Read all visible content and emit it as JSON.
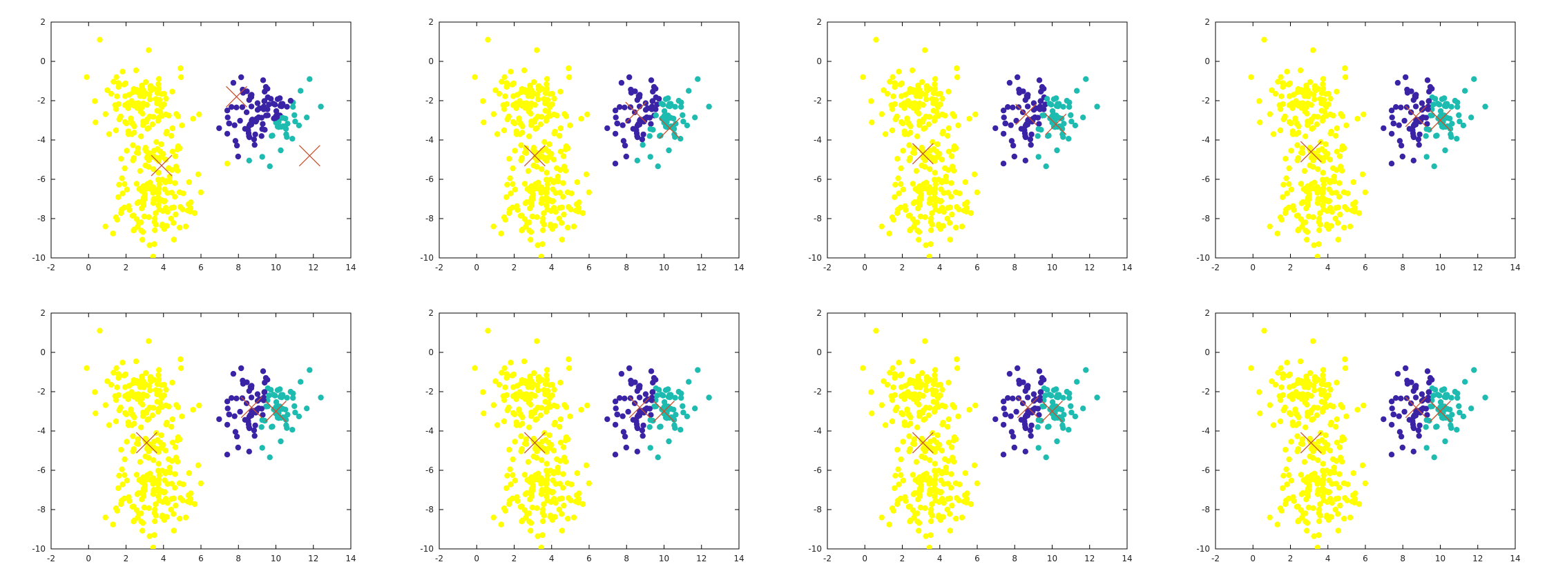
{
  "colors": {
    "cluster_a": "#ffff00",
    "cluster_b": "#3b23a5",
    "cluster_c": "#1dbbb0",
    "centroid": "#c8502c",
    "frame": "#000000",
    "tick_text": "#222222"
  },
  "chart_data": [
    {
      "type": "scatter",
      "panel": "1",
      "xlim": [
        -2,
        14
      ],
      "ylim": [
        -10,
        2
      ],
      "xticks": [
        "-2",
        "0",
        "2",
        "4",
        "6",
        "8",
        "10",
        "12",
        "14"
      ],
      "yticks": [
        "2",
        "0",
        "-2",
        "-4",
        "-6",
        "-8",
        "-10"
      ],
      "centroids": [
        {
          "x": 3.9,
          "y": -5.3
        },
        {
          "x": 7.9,
          "y": -1.8
        },
        {
          "x": 11.8,
          "y": -4.8
        }
      ],
      "clusters": [
        {
          "color_key": "cluster_a",
          "centroid": [
            3.9,
            -5.3
          ],
          "spread": [
            1.25,
            2.05
          ]
        },
        {
          "color_key": "cluster_b",
          "centroid": [
            7.9,
            -1.8
          ],
          "spread": [
            1.0,
            1.0
          ]
        },
        {
          "color_key": "cluster_c",
          "centroid": [
            11.8,
            -4.8
          ],
          "spread": [
            1.0,
            1.0
          ]
        }
      ]
    },
    {
      "type": "scatter",
      "panel": "2",
      "xlim": [
        -2,
        14
      ],
      "ylim": [
        -10,
        2
      ],
      "xticks": [
        "-2",
        "0",
        "2",
        "4",
        "6",
        "8",
        "10",
        "12",
        "14"
      ],
      "yticks": [
        "2",
        "0",
        "-2",
        "-4",
        "-6",
        "-8",
        "-10"
      ],
      "centroids": [
        {
          "x": 3.1,
          "y": -4.8
        },
        {
          "x": 8.5,
          "y": -2.6
        },
        {
          "x": 10.3,
          "y": -3.4
        }
      ],
      "clusters": [
        {
          "color_key": "cluster_a",
          "centroid": [
            3.1,
            -4.8
          ],
          "spread": [
            1.25,
            2.05
          ]
        },
        {
          "color_key": "cluster_b",
          "centroid": [
            8.5,
            -2.6
          ],
          "spread": [
            1.0,
            1.0
          ]
        },
        {
          "color_key": "cluster_c",
          "centroid": [
            10.3,
            -3.4
          ],
          "spread": [
            1.0,
            1.0
          ]
        }
      ]
    },
    {
      "type": "scatter",
      "panel": "3",
      "xlim": [
        -2,
        14
      ],
      "ylim": [
        -10,
        2
      ],
      "xticks": [
        "-2",
        "0",
        "2",
        "4",
        "6",
        "8",
        "10",
        "12",
        "14"
      ],
      "yticks": [
        "2",
        "0",
        "-2",
        "-4",
        "-6",
        "-8",
        "-10"
      ],
      "centroids": [
        {
          "x": 3.1,
          "y": -4.7
        },
        {
          "x": 8.6,
          "y": -2.7
        },
        {
          "x": 10.2,
          "y": -3.2
        }
      ],
      "clusters": [
        {
          "color_key": "cluster_a",
          "centroid": [
            3.1,
            -4.7
          ],
          "spread": [
            1.25,
            2.05
          ]
        },
        {
          "color_key": "cluster_b",
          "centroid": [
            8.6,
            -2.7
          ],
          "spread": [
            1.0,
            1.0
          ]
        },
        {
          "color_key": "cluster_c",
          "centroid": [
            10.2,
            -3.2
          ],
          "spread": [
            1.0,
            1.0
          ]
        }
      ]
    },
    {
      "type": "scatter",
      "panel": "4",
      "xlim": [
        -2,
        14
      ],
      "ylim": [
        -10,
        2
      ],
      "xticks": [
        "-2",
        "0",
        "2",
        "4",
        "6",
        "8",
        "10",
        "12",
        "14"
      ],
      "yticks": [
        "2",
        "0",
        "-2",
        "-4",
        "-6",
        "-8",
        "-10"
      ],
      "centroids": [
        {
          "x": 3.1,
          "y": -4.6
        },
        {
          "x": 8.7,
          "y": -2.8
        },
        {
          "x": 10.0,
          "y": -3.0
        }
      ],
      "clusters": [
        {
          "color_key": "cluster_a",
          "centroid": [
            3.1,
            -4.6
          ],
          "spread": [
            1.25,
            2.05
          ]
        },
        {
          "color_key": "cluster_b",
          "centroid": [
            8.7,
            -2.8
          ],
          "spread": [
            1.0,
            1.0
          ]
        },
        {
          "color_key": "cluster_c",
          "centroid": [
            10.0,
            -3.0
          ],
          "spread": [
            1.0,
            1.0
          ]
        }
      ]
    },
    {
      "type": "scatter",
      "panel": "5",
      "xlim": [
        -2,
        14
      ],
      "ylim": [
        -10,
        2
      ],
      "xticks": [
        "-2",
        "0",
        "2",
        "4",
        "6",
        "8",
        "10",
        "12",
        "14"
      ],
      "yticks": [
        "2",
        "0",
        "-2",
        "-4",
        "-6",
        "-8",
        "-10"
      ],
      "centroids": [
        {
          "x": 3.1,
          "y": -4.6
        },
        {
          "x": 8.7,
          "y": -2.8
        },
        {
          "x": 10.0,
          "y": -3.0
        }
      ],
      "clusters": [
        {
          "color_key": "cluster_a",
          "centroid": [
            3.1,
            -4.6
          ],
          "spread": [
            1.25,
            2.05
          ]
        },
        {
          "color_key": "cluster_b",
          "centroid": [
            8.7,
            -2.8
          ],
          "spread": [
            1.0,
            1.0
          ]
        },
        {
          "color_key": "cluster_c",
          "centroid": [
            10.0,
            -3.0
          ],
          "spread": [
            1.0,
            1.0
          ]
        }
      ]
    },
    {
      "type": "scatter",
      "panel": "6",
      "xlim": [
        -2,
        14
      ],
      "ylim": [
        -10,
        2
      ],
      "xticks": [
        "-2",
        "0",
        "2",
        "4",
        "6",
        "8",
        "10",
        "12",
        "14"
      ],
      "yticks": [
        "2",
        "0",
        "-2",
        "-4",
        "-6",
        "-8",
        "-10"
      ],
      "centroids": [
        {
          "x": 3.1,
          "y": -4.6
        },
        {
          "x": 8.7,
          "y": -2.8
        },
        {
          "x": 10.0,
          "y": -3.0
        }
      ],
      "clusters": [
        {
          "color_key": "cluster_a",
          "centroid": [
            3.1,
            -4.6
          ],
          "spread": [
            1.25,
            2.05
          ]
        },
        {
          "color_key": "cluster_b",
          "centroid": [
            8.7,
            -2.8
          ],
          "spread": [
            1.0,
            1.0
          ]
        },
        {
          "color_key": "cluster_c",
          "centroid": [
            10.0,
            -3.0
          ],
          "spread": [
            1.0,
            1.0
          ]
        }
      ]
    },
    {
      "type": "scatter",
      "panel": "7",
      "xlim": [
        -2,
        14
      ],
      "ylim": [
        -10,
        2
      ],
      "xticks": [
        "-2",
        "0",
        "2",
        "4",
        "6",
        "8",
        "10",
        "12",
        "14"
      ],
      "yticks": [
        "2",
        "0",
        "-2",
        "-4",
        "-6",
        "-8",
        "-10"
      ],
      "centroids": [
        {
          "x": 3.1,
          "y": -4.6
        },
        {
          "x": 8.7,
          "y": -2.8
        },
        {
          "x": 10.0,
          "y": -3.0
        }
      ],
      "clusters": [
        {
          "color_key": "cluster_a",
          "centroid": [
            3.1,
            -4.6
          ],
          "spread": [
            1.25,
            2.05
          ]
        },
        {
          "color_key": "cluster_b",
          "centroid": [
            8.7,
            -2.8
          ],
          "spread": [
            1.0,
            1.0
          ]
        },
        {
          "color_key": "cluster_c",
          "centroid": [
            10.0,
            -3.0
          ],
          "spread": [
            1.0,
            1.0
          ]
        }
      ]
    },
    {
      "type": "scatter",
      "panel": "8",
      "xlim": [
        -2,
        14
      ],
      "ylim": [
        -10,
        2
      ],
      "xticks": [
        "-2",
        "0",
        "2",
        "4",
        "6",
        "8",
        "10",
        "12",
        "14"
      ],
      "yticks": [
        "2",
        "0",
        "-2",
        "-4",
        "-6",
        "-8",
        "-10"
      ],
      "centroids": [
        {
          "x": 3.1,
          "y": -4.6
        },
        {
          "x": 8.7,
          "y": -2.8
        },
        {
          "x": 10.0,
          "y": -3.0
        }
      ],
      "clusters": [
        {
          "color_key": "cluster_a",
          "centroid": [
            3.1,
            -4.6
          ],
          "spread": [
            1.25,
            2.05
          ]
        },
        {
          "color_key": "cluster_b",
          "centroid": [
            8.7,
            -2.8
          ],
          "spread": [
            1.0,
            1.0
          ]
        },
        {
          "color_key": "cluster_c",
          "centroid": [
            10.0,
            -3.0
          ],
          "spread": [
            1.0,
            1.0
          ]
        }
      ]
    }
  ]
}
